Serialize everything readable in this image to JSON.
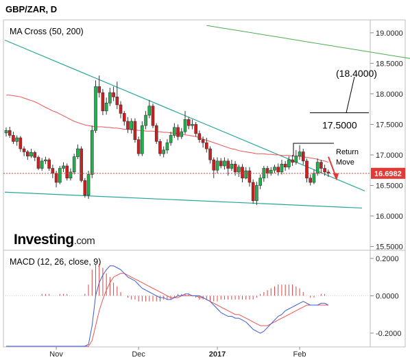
{
  "header": {
    "title": "GBP/ZAR, D"
  },
  "watermark": {
    "brand": "Investing",
    "suffix": ".com"
  },
  "colors": {
    "bull": "#22b14c",
    "bear": "#cc1f1f",
    "ma_fast": "#ef5350",
    "ma_slow": "#4caf50",
    "channel": "#26a69a",
    "macd_line": "#3b5bd9",
    "signal_line": "#ef5350",
    "histogram": "#e04040",
    "price_tag": "#e53935",
    "annotation": "#000000",
    "return_arrow": "#e53935"
  },
  "chart_data": [
    {
      "type": "candlestick",
      "indicator_label": "MA Cross (50, 200)",
      "ylim": [
        15.45,
        19.2
      ],
      "y_ticks": [
        "15.5000",
        "16.0000",
        "16.5000",
        "17.0000",
        "17.5000",
        "18.0000",
        "18.5000",
        "19.0000"
      ],
      "x_ticks": [
        "Nov",
        "Dec",
        "2017",
        "Feb"
      ],
      "current_price": "16.6982",
      "candles": [
        [
          17.36,
          17.4,
          17.45,
          17.3
        ],
        [
          17.4,
          17.32,
          17.46,
          17.28
        ],
        [
          17.32,
          17.22,
          17.38,
          17.18
        ],
        [
          17.22,
          17.28,
          17.32,
          17.15
        ],
        [
          17.28,
          17.1,
          17.31,
          17.05
        ],
        [
          17.1,
          17.05,
          17.14,
          16.98
        ],
        [
          17.05,
          16.98,
          17.08,
          16.92
        ],
        [
          16.98,
          17.04,
          17.1,
          16.95
        ],
        [
          17.04,
          16.96,
          17.07,
          16.9
        ],
        [
          16.96,
          16.78,
          16.99,
          16.75
        ],
        [
          16.78,
          16.9,
          16.95,
          16.74
        ],
        [
          16.9,
          16.92,
          16.97,
          16.85
        ],
        [
          16.92,
          16.78,
          16.95,
          16.74
        ],
        [
          16.78,
          16.7,
          16.84,
          16.62
        ],
        [
          16.7,
          16.55,
          16.74,
          16.47
        ],
        [
          16.55,
          16.78,
          16.82,
          16.52
        ],
        [
          16.78,
          16.82,
          16.88,
          16.72
        ],
        [
          16.82,
          16.62,
          16.86,
          16.58
        ],
        [
          16.62,
          16.72,
          16.78,
          16.58
        ],
        [
          16.72,
          16.97,
          17.02,
          16.68
        ],
        [
          16.97,
          17.1,
          17.17,
          16.93
        ],
        [
          17.1,
          16.58,
          17.14,
          16.55
        ],
        [
          16.58,
          16.34,
          16.62,
          16.3
        ],
        [
          16.34,
          16.68,
          16.74,
          16.28
        ],
        [
          16.68,
          17.4,
          17.48,
          16.62
        ],
        [
          17.4,
          18.12,
          18.22,
          17.36
        ],
        [
          18.12,
          18.02,
          18.3,
          17.94
        ],
        [
          18.02,
          17.72,
          18.08,
          17.65
        ],
        [
          17.72,
          17.85,
          17.94,
          17.66
        ],
        [
          17.85,
          18.02,
          18.1,
          17.8
        ],
        [
          18.02,
          17.95,
          18.12,
          17.88
        ],
        [
          17.95,
          17.82,
          18.2,
          17.75
        ],
        [
          17.82,
          17.68,
          17.88,
          17.6
        ],
        [
          17.68,
          17.55,
          17.72,
          17.48
        ],
        [
          17.55,
          17.42,
          17.62,
          17.36
        ],
        [
          17.42,
          17.55,
          17.6,
          17.35
        ],
        [
          17.55,
          17.25,
          17.6,
          17.2
        ],
        [
          17.25,
          17.02,
          17.3,
          16.98
        ],
        [
          17.02,
          17.48,
          17.55,
          16.98
        ],
        [
          17.48,
          17.65,
          17.72,
          17.42
        ],
        [
          17.65,
          17.8,
          17.9,
          17.6
        ],
        [
          17.8,
          17.48,
          17.84,
          17.44
        ],
        [
          17.48,
          17.22,
          17.52,
          17.18
        ],
        [
          17.22,
          17.02,
          17.26,
          16.98
        ],
        [
          17.02,
          17.08,
          17.14,
          16.96
        ],
        [
          17.08,
          17.2,
          17.26,
          17.02
        ],
        [
          17.2,
          17.32,
          17.38,
          17.15
        ],
        [
          17.32,
          17.45,
          17.52,
          17.28
        ],
        [
          17.45,
          17.3,
          17.5,
          17.24
        ],
        [
          17.3,
          17.38,
          17.44,
          17.26
        ],
        [
          17.38,
          17.58,
          17.72,
          17.34
        ],
        [
          17.58,
          17.48,
          17.62,
          17.42
        ],
        [
          17.48,
          17.5,
          17.58,
          17.42
        ],
        [
          17.5,
          17.35,
          17.54,
          17.3
        ],
        [
          17.35,
          17.25,
          17.4,
          17.2
        ],
        [
          17.25,
          17.2,
          17.3,
          17.12
        ],
        [
          17.2,
          17.1,
          17.28,
          17.04
        ],
        [
          17.1,
          16.92,
          17.14,
          16.86
        ],
        [
          16.92,
          16.75,
          16.96,
          16.62
        ],
        [
          16.75,
          16.9,
          16.96,
          16.7
        ],
        [
          16.9,
          16.82,
          16.95,
          16.78
        ],
        [
          16.82,
          16.9,
          16.96,
          16.76
        ],
        [
          16.9,
          16.78,
          16.94,
          16.66
        ],
        [
          16.78,
          16.85,
          16.92,
          16.74
        ],
        [
          16.85,
          16.72,
          16.9,
          16.66
        ],
        [
          16.72,
          16.8,
          16.84,
          16.64
        ],
        [
          16.8,
          16.62,
          16.85,
          16.55
        ],
        [
          16.62,
          16.74,
          16.8,
          16.6
        ],
        [
          16.74,
          16.55,
          16.8,
          16.48
        ],
        [
          16.55,
          16.25,
          16.6,
          16.2
        ],
        [
          16.25,
          16.5,
          16.56,
          16.18
        ],
        [
          16.5,
          16.62,
          16.68,
          16.44
        ],
        [
          16.62,
          16.78,
          16.82,
          16.56
        ],
        [
          16.78,
          16.7,
          16.82,
          16.62
        ],
        [
          16.7,
          16.75,
          16.8,
          16.66
        ],
        [
          16.75,
          16.8,
          16.84,
          16.7
        ],
        [
          16.8,
          16.72,
          16.86,
          16.66
        ],
        [
          16.72,
          16.85,
          16.92,
          16.68
        ],
        [
          16.85,
          16.8,
          16.9,
          16.74
        ],
        [
          16.8,
          16.92,
          16.98,
          16.76
        ],
        [
          16.92,
          16.88,
          17.0,
          16.82
        ],
        [
          16.88,
          16.98,
          17.08,
          16.84
        ],
        [
          16.98,
          17.05,
          17.16,
          16.92
        ],
        [
          17.05,
          16.9,
          17.1,
          16.84
        ],
        [
          16.9,
          16.62,
          16.94,
          16.55
        ],
        [
          16.62,
          16.55,
          16.68,
          16.5
        ],
        [
          16.55,
          16.7,
          16.76,
          16.52
        ],
        [
          16.7,
          16.88,
          16.94,
          16.66
        ],
        [
          16.88,
          16.78,
          16.92,
          16.7
        ],
        [
          16.78,
          16.72,
          16.84,
          16.66
        ],
        [
          16.72,
          16.7,
          16.76,
          16.64
        ]
      ],
      "ma_50": [
        17.98,
        17.98,
        17.97,
        17.96,
        17.95,
        17.93,
        17.91,
        17.89,
        17.87,
        17.84,
        17.81,
        17.78,
        17.75,
        17.72,
        17.7,
        17.67,
        17.64,
        17.61,
        17.58,
        17.55,
        17.53,
        17.51,
        17.49,
        17.48,
        17.47,
        17.46,
        17.46,
        17.46,
        17.45,
        17.45,
        17.44,
        17.44,
        17.43,
        17.42,
        17.42,
        17.41,
        17.41,
        17.4,
        17.4,
        17.39,
        17.39,
        17.39,
        17.38,
        17.38,
        17.37,
        17.37,
        17.36,
        17.36,
        17.35,
        17.34,
        17.33,
        17.32,
        17.31,
        17.3,
        17.28,
        17.26,
        17.24,
        17.22,
        17.2,
        17.18,
        17.16,
        17.14,
        17.12,
        17.1,
        17.09,
        17.07,
        17.06,
        17.05,
        17.04,
        17.03,
        17.02,
        17.02,
        17.02,
        17.01,
        17.01,
        17.0,
        17.0,
        16.99,
        16.99,
        16.99,
        16.98,
        16.98,
        16.98,
        16.97,
        16.96,
        16.95,
        16.94,
        16.93,
        16.91,
        16.9,
        16.88
      ],
      "ma_200": [
        19.12,
        19.08,
        19.04,
        19.0,
        18.96,
        18.92,
        18.88,
        18.84,
        18.8,
        18.76,
        18.72,
        18.68,
        18.64,
        18.6,
        18.56,
        18.52,
        18.48,
        18.44
      ],
      "ma_200_start_index": 56,
      "annotations": {
        "upper_level": "(18.4000)",
        "lower_level": "17.5000",
        "return_label": "Return\nMove"
      }
    },
    {
      "type": "line",
      "indicator_label": "MACD (12, 26, close, 9)",
      "ylim": [
        -0.27,
        0.24
      ],
      "y_ticks": [
        "-0.2000",
        "0.0000",
        "0.2000"
      ],
      "macd_line": [
        -0.28,
        -0.28,
        -0.28,
        -0.28,
        -0.28,
        -0.28,
        -0.28,
        -0.28,
        -0.28,
        -0.28,
        -0.28,
        -0.28,
        -0.28,
        -0.28,
        -0.28,
        -0.28,
        -0.28,
        -0.28,
        -0.28,
        -0.28,
        -0.28,
        -0.28,
        -0.28,
        -0.26,
        -0.16,
        0.0,
        0.07,
        0.11,
        0.14,
        0.16,
        0.16,
        0.15,
        0.14,
        0.12,
        0.1,
        0.09,
        0.08,
        0.06,
        0.04,
        0.03,
        0.02,
        0.01,
        0.0,
        -0.01,
        -0.01,
        -0.02,
        -0.02,
        -0.01,
        0.0,
        0.0,
        0.01,
        0.01,
        0.0,
        0.0,
        0.0,
        -0.01,
        -0.02,
        -0.03,
        -0.05,
        -0.07,
        -0.09,
        -0.1,
        -0.11,
        -0.11,
        -0.12,
        -0.12,
        -0.13,
        -0.14,
        -0.16,
        -0.18,
        -0.19,
        -0.2,
        -0.19,
        -0.17,
        -0.15,
        -0.13,
        -0.11,
        -0.1,
        -0.08,
        -0.07,
        -0.06,
        -0.05,
        -0.04,
        -0.03,
        -0.04,
        -0.05,
        -0.05,
        -0.05,
        -0.04,
        -0.04,
        -0.05
      ],
      "signal_line": [
        -0.3,
        -0.3,
        -0.3,
        -0.3,
        -0.3,
        -0.3,
        -0.3,
        -0.3,
        -0.3,
        -0.3,
        -0.3,
        -0.3,
        -0.3,
        -0.3,
        -0.3,
        -0.3,
        -0.3,
        -0.3,
        -0.3,
        -0.3,
        -0.3,
        -0.3,
        -0.3,
        -0.28,
        -0.24,
        -0.16,
        -0.08,
        -0.02,
        0.03,
        0.07,
        0.1,
        0.11,
        0.12,
        0.12,
        0.11,
        0.1,
        0.09,
        0.08,
        0.07,
        0.06,
        0.05,
        0.04,
        0.03,
        0.02,
        0.01,
        0.0,
        -0.01,
        -0.01,
        -0.01,
        0.0,
        0.0,
        0.0,
        0.0,
        0.0,
        -0.01,
        -0.01,
        -0.02,
        -0.03,
        -0.04,
        -0.05,
        -0.06,
        -0.07,
        -0.08,
        -0.09,
        -0.1,
        -0.1,
        -0.11,
        -0.12,
        -0.13,
        -0.14,
        -0.15,
        -0.16,
        -0.16,
        -0.16,
        -0.15,
        -0.14,
        -0.13,
        -0.12,
        -0.11,
        -0.1,
        -0.09,
        -0.08,
        -0.07,
        -0.06,
        -0.05,
        -0.05,
        -0.05,
        -0.05,
        -0.05,
        -0.05,
        -0.05
      ],
      "histogram": [
        0.0,
        0.0,
        0.0,
        0.0,
        0.0,
        0.0,
        0.0,
        0.0,
        0.0,
        0.0,
        0.01,
        0.01,
        0.01,
        0.0,
        0.0,
        0.01,
        0.01,
        0.01,
        0.0,
        0.0,
        0.0,
        0.0,
        0.01,
        0.06,
        0.14,
        0.17,
        0.17,
        0.15,
        0.12,
        0.1,
        0.07,
        0.05,
        0.02,
        0.0,
        -0.01,
        -0.02,
        -0.02,
        -0.03,
        -0.03,
        -0.03,
        -0.03,
        -0.03,
        -0.03,
        -0.03,
        -0.02,
        -0.02,
        -0.02,
        -0.01,
        0.01,
        0.01,
        0.01,
        0.01,
        0.0,
        -0.01,
        -0.02,
        -0.02,
        -0.02,
        -0.03,
        -0.03,
        -0.03,
        -0.02,
        -0.02,
        -0.02,
        -0.02,
        -0.02,
        -0.02,
        -0.02,
        -0.02,
        -0.02,
        -0.02,
        -0.01,
        0.01,
        0.02,
        0.03,
        0.04,
        0.05,
        0.06,
        0.06,
        0.06,
        0.06,
        0.06,
        0.05,
        0.04,
        0.02,
        0.0,
        -0.01,
        -0.01,
        0.0,
        0.01,
        0.01,
        0.0
      ]
    }
  ]
}
